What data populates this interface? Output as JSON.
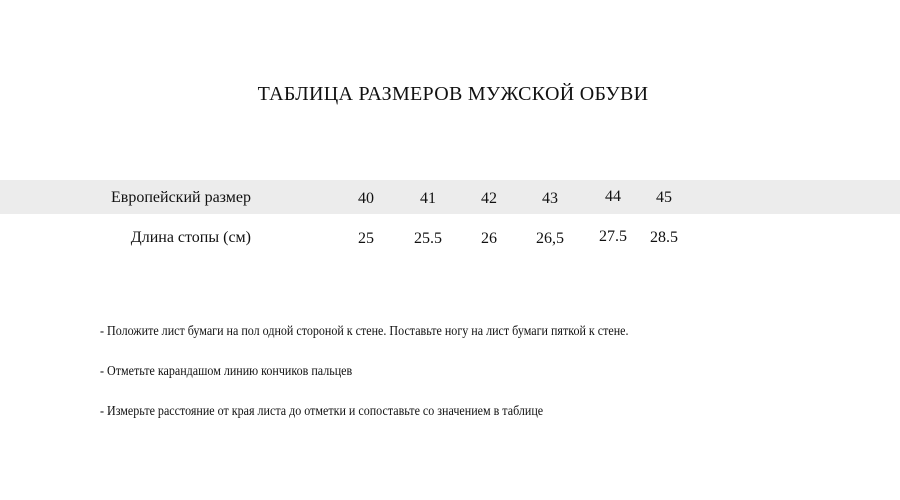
{
  "title": "ТАБЛИЦА РАЗМЕРОВ МУЖСКОЙ ОБУВИ",
  "table": {
    "rows": [
      {
        "label": "Европейский размер",
        "values": [
          "40",
          "41",
          "42",
          "43",
          "44",
          "45"
        ]
      },
      {
        "label": "Длина стопы (см)",
        "values": [
          "25",
          "25.5",
          "26",
          "26,5",
          "27.5",
          "28.5"
        ]
      }
    ],
    "header_band_color": "#ececec"
  },
  "notes": [
    "- Положите лист бумаги на пол одной стороной к стене. Поставьте ногу на лист бумаги пяткой к стене.",
    "- Отметьте карандашом линию кончиков пальцев",
    "- Измерьте расстояние от края листа до отметки и сопоставьте со значением в таблице"
  ]
}
